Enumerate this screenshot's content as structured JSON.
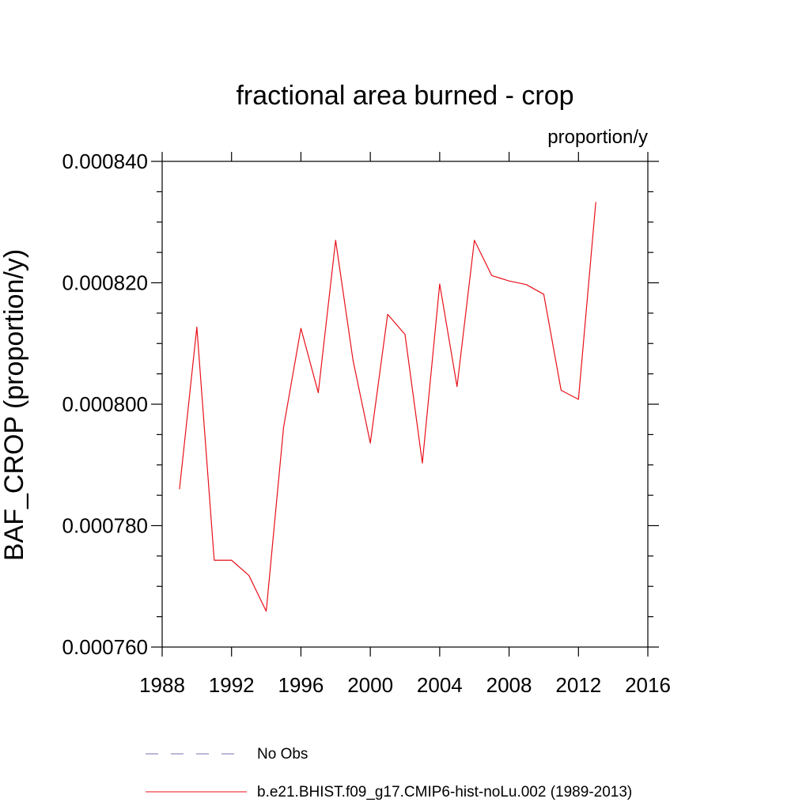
{
  "chart_data": {
    "type": "line",
    "title": "fractional area burned - crop",
    "units": "proportion/y",
    "xlabel": "",
    "ylabel": "BAF_CROP  (proportion/y)",
    "xlim": [
      1988,
      2016
    ],
    "ylim": [
      0.00076,
      0.00084
    ],
    "x_ticks": [
      "1988",
      "1992",
      "1996",
      "2000",
      "2004",
      "2008",
      "2012",
      "2016"
    ],
    "y_ticks": [
      "0.000760",
      "0.000780",
      "0.000800",
      "0.000820",
      "0.000840"
    ],
    "series": [
      {
        "name": "b.e21.BHIST.f09_g17.CMIP6-hist-noLu.002 (1989-2013)",
        "color": "#e8101a",
        "style": "solid",
        "x": [
          1989,
          1990,
          1991,
          1992,
          1993,
          1994,
          1995,
          1996,
          1997,
          1998,
          1999,
          2000,
          2001,
          2002,
          2003,
          2004,
          2005,
          2006,
          2007,
          2008,
          2009,
          2010,
          2011,
          2012,
          2013
        ],
        "values": [
          0.000786,
          0.0008127,
          0.0007743,
          0.0007743,
          0.0007718,
          0.0007659,
          0.0007962,
          0.0008125,
          0.0008019,
          0.000827,
          0.0008073,
          0.0007936,
          0.0008148,
          0.0008115,
          0.0007903,
          0.0008198,
          0.0008029,
          0.000827,
          0.0008212,
          0.0008203,
          0.0008197,
          0.0008181,
          0.0008023,
          0.0008008,
          0.0008333
        ]
      }
    ],
    "legend": [
      {
        "label": "No Obs",
        "color": "#7b6fb0",
        "style": "dashed"
      },
      {
        "label": "b.e21.BHIST.f09_g17.CMIP6-hist-noLu.002 (1989-2013)",
        "color": "#e8101a",
        "style": "solid"
      }
    ]
  }
}
